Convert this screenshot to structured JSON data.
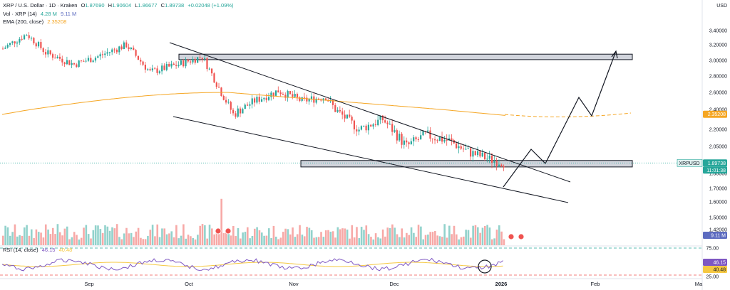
{
  "header": {
    "symbol_line": "XRP / U.S. Dollar · 1D · Kraken",
    "ohlc": [
      {
        "k": "O",
        "v": "1.87690"
      },
      {
        "k": "H",
        "v": "1.90604"
      },
      {
        "k": "L",
        "v": "1.86677"
      },
      {
        "k": "C",
        "v": "1.89738"
      }
    ],
    "change": "+0.02048 (+1.09%)",
    "vol_label": "Vol · XRP (14)",
    "vol_values": [
      "4.28 M",
      "9.11 M"
    ],
    "ema_label": "EMA (200, close)",
    "ema_value": "2.35208",
    "rsi_label": "RSI (14, close)",
    "rsi_values": [
      "46.15",
      "40.48"
    ]
  },
  "colors": {
    "up": "#26a69a",
    "down": "#ef5350",
    "ema": "#f5a623",
    "rsi": "#7e57c2",
    "rsi_ma": "#f5c842",
    "vol_ma": "#5c6bc0",
    "zone_fill": "#d1d4dc"
  },
  "price_axis": {
    "currency": "USD",
    "ticks": [
      "3.40000",
      "3.20000",
      "3.00000",
      "2.80000",
      "2.60000",
      "2.40000",
      "2.20000",
      "2.05000",
      "1.80000",
      "1.70000",
      "1.60000",
      "1.50000",
      "1.42000"
    ],
    "symbol_tag": "XRPUSD",
    "last_price": "1.89738",
    "countdown": "11:01:38",
    "ema_tag": "2.35208",
    "vol_tag": "9.11 M"
  },
  "rsi_axis": {
    "ticks": [
      "75.00",
      "25.00"
    ],
    "rsi_tag": "46.15",
    "rsi_ma_tag": "40.48"
  },
  "time_axis": [
    "Sep",
    "Oct",
    "Nov",
    "Dec",
    "2026",
    "Feb",
    "Ma"
  ],
  "chart_data": {
    "type": "candlestick",
    "title": "XRP / U.S. Dollar · 1D · Kraken",
    "ohlc_seed": [
      [
        3.1,
        3.3
      ],
      [
        3.3,
        3.18
      ],
      [
        3.18,
        3.05
      ],
      [
        3.05,
        2.95
      ],
      [
        2.95,
        2.9
      ],
      [
        2.9,
        3.0
      ],
      [
        3.0,
        2.88
      ],
      [
        2.88,
        2.78
      ],
      [
        2.78,
        2.85
      ],
      [
        2.85,
        3.0
      ],
      [
        3.0,
        2.95
      ],
      [
        2.95,
        2.9
      ]
    ],
    "ema200": {
      "name": "EMA (200, close)",
      "last": 2.35208
    },
    "zones": [
      {
        "from": 3.01,
        "to": 3.08
      },
      {
        "from": 1.86,
        "to": 1.92
      }
    ],
    "channel": {
      "upper": [
        [
          "Sep 28",
          3.2
        ],
        [
          "Jan 30",
          1.75
        ]
      ],
      "lower": [
        [
          "Sep 28",
          2.33
        ],
        [
          "Feb 5",
          1.6
        ]
      ]
    },
    "projection": [
      1.72,
      2.02,
      1.9,
      2.55,
      2.35,
      3.08
    ],
    "last_close": 1.89738,
    "rsi": {
      "name": "RSI (14, close)",
      "value": 46.15,
      "ma": 40.48,
      "levels": [
        75,
        25
      ]
    },
    "volume": {
      "name": "Vol · XRP (14)",
      "last": "4.28 M",
      "ma": "9.11 M"
    }
  }
}
